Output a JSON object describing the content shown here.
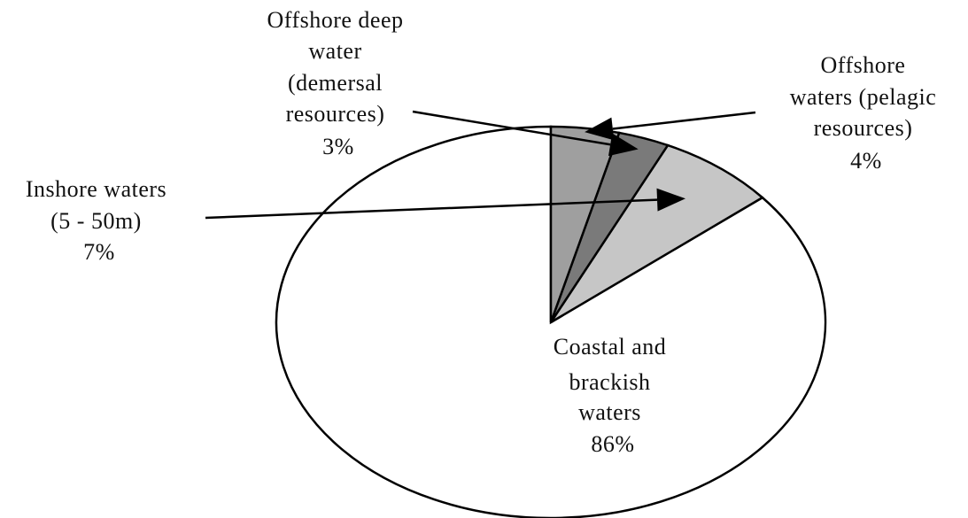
{
  "chart_data": {
    "type": "pie",
    "title": "",
    "slices": [
      {
        "label_lines": [
          "Coastal and",
          "brackish",
          "waters"
        ],
        "value": 86,
        "value_label": "86%",
        "color": "#ffffff"
      },
      {
        "label_lines": [
          "Inshore waters",
          "(5 - 50m)"
        ],
        "value": 7,
        "value_label": "7%",
        "color": "#c6c6c6"
      },
      {
        "label_lines": [
          "Offshore deep",
          "water",
          "(demersal",
          "resources)"
        ],
        "value": 3,
        "value_label": "3%",
        "color": "#7a7a7a"
      },
      {
        "label_lines": [
          "Offshore",
          "waters (pelagic",
          "resources)"
        ],
        "value": 4,
        "value_label": "4%",
        "color": "#9f9f9f"
      }
    ],
    "start_angle_deg": 0,
    "direction": "counterclockwise",
    "legend": "none"
  }
}
